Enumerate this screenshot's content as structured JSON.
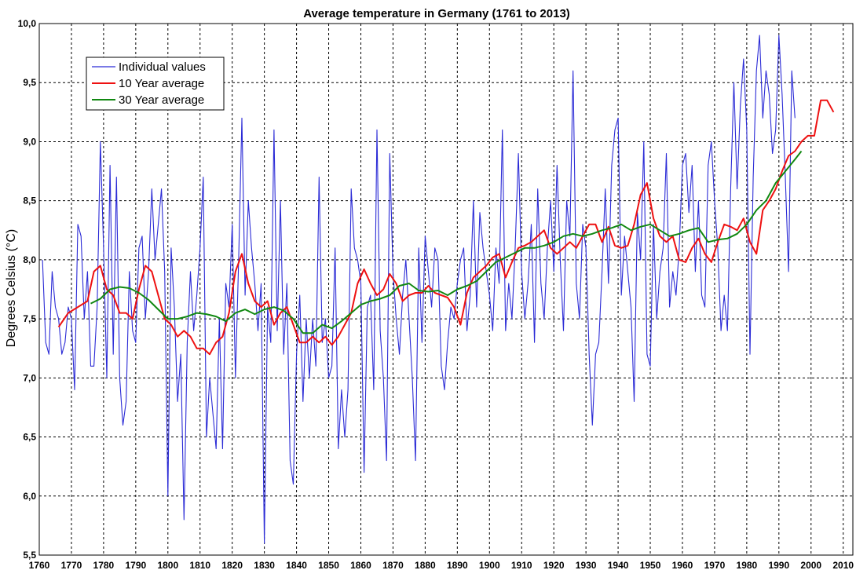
{
  "chart_data": {
    "type": "line",
    "title": "Average temperature in Germany (1761 to 2013)",
    "xlabel": "",
    "ylabel": "Degrees Celsius (°C)",
    "xlim": [
      1760,
      2013
    ],
    "ylim": [
      5.5,
      10.0
    ],
    "xticks": [
      1760,
      1770,
      1780,
      1790,
      1800,
      1810,
      1820,
      1830,
      1840,
      1850,
      1860,
      1870,
      1880,
      1890,
      1900,
      1910,
      1920,
      1930,
      1940,
      1950,
      1960,
      1970,
      1980,
      1990,
      2000,
      2010
    ],
    "yticks": [
      5.5,
      6.0,
      6.5,
      7.0,
      7.5,
      8.0,
      8.5,
      9.0,
      9.5,
      10.0
    ],
    "ytick_labels": [
      "5,5",
      "6,0",
      "6,5",
      "7,0",
      "7,5",
      "8,0",
      "8,5",
      "9,0",
      "9,5",
      "10,0"
    ],
    "grid": true,
    "legend_position": "top-left",
    "series": [
      {
        "name": "Individual values",
        "color": "#2b2bd6",
        "x_start": 1761,
        "values": [
          8.0,
          7.3,
          7.2,
          7.9,
          7.6,
          7.5,
          7.2,
          7.3,
          7.6,
          7.5,
          6.9,
          8.3,
          8.2,
          7.5,
          7.9,
          7.1,
          7.1,
          7.6,
          9.0,
          8.1,
          7.0,
          8.8,
          7.2,
          8.7,
          7.0,
          6.6,
          6.8,
          7.9,
          7.4,
          7.3,
          8.1,
          8.2,
          7.5,
          7.9,
          8.6,
          8.0,
          8.3,
          8.6,
          7.9,
          6.0,
          8.1,
          7.6,
          6.8,
          7.2,
          5.8,
          7.3,
          7.9,
          7.4,
          7.7,
          8.1,
          8.7,
          6.5,
          7.0,
          6.7,
          6.4,
          7.5,
          6.4,
          7.8,
          7.6,
          8.3,
          7.0,
          8.0,
          9.2,
          7.7,
          8.5,
          8.1,
          7.8,
          7.4,
          7.8,
          5.6,
          7.6,
          7.3,
          9.1,
          7.4,
          8.5,
          7.2,
          7.8,
          6.3,
          6.1,
          7.2,
          7.7,
          6.8,
          7.5,
          7.0,
          7.5,
          7.1,
          8.7,
          7.3,
          7.5,
          7.0,
          7.1,
          8.1,
          6.4,
          6.9,
          6.5,
          6.9,
          8.6,
          8.1,
          8.0,
          7.8,
          6.2,
          7.6,
          7.7,
          6.9,
          9.1,
          7.4,
          7.0,
          6.3,
          8.9,
          7.9,
          7.5,
          7.2,
          7.7,
          8.0,
          7.5,
          7.0,
          6.3,
          8.1,
          7.3,
          8.2,
          7.9,
          7.6,
          8.1,
          8.0,
          7.1,
          6.9,
          7.3,
          7.6,
          7.5,
          7.8,
          8.0,
          8.1,
          7.4,
          7.7,
          8.5,
          7.6,
          8.4,
          8.1,
          7.9,
          7.7,
          7.4,
          8.1,
          7.8,
          9.1,
          7.4,
          7.8,
          7.5,
          8.1,
          8.9,
          7.9,
          7.5,
          7.8,
          8.3,
          7.3,
          8.6,
          7.8,
          7.5,
          8.1,
          8.5,
          7.9,
          8.8,
          8.0,
          7.4,
          8.5,
          8.2,
          9.6,
          7.8,
          7.5,
          8.3,
          8.1,
          7.2,
          6.6,
          7.2,
          7.3,
          7.9,
          8.6,
          7.8,
          8.8,
          9.1,
          9.2,
          7.7,
          8.2,
          7.9,
          7.6,
          6.8,
          8.4,
          8.0,
          9.0,
          7.2,
          7.1,
          8.3,
          7.5,
          7.9,
          8.1,
          8.9,
          7.6,
          7.9,
          7.7,
          8.1,
          8.8,
          8.9,
          8.4,
          8.8,
          7.9,
          8.5,
          7.7,
          7.6,
          8.8,
          9.0,
          8.5,
          8.1,
          7.4,
          7.7,
          7.4,
          8.6,
          9.5,
          8.6,
          9.3,
          9.7,
          9.1,
          7.2,
          8.7,
          9.6,
          9.9,
          9.2,
          9.6,
          9.4,
          8.9,
          9.1,
          9.9,
          9.4,
          8.7,
          7.9,
          9.6,
          9.2
        ]
      },
      {
        "name": "10 Year average",
        "color": "#ee1111",
        "x": [
          1766,
          1769,
          1772,
          1775,
          1777,
          1779,
          1781,
          1783,
          1785,
          1787,
          1789,
          1791,
          1793,
          1795,
          1797,
          1799,
          1801,
          1803,
          1805,
          1807,
          1809,
          1811,
          1813,
          1815,
          1817,
          1819,
          1821,
          1823,
          1825,
          1827,
          1829,
          1831,
          1833,
          1835,
          1837,
          1839,
          1841,
          1843,
          1845,
          1847,
          1849,
          1851,
          1853,
          1855,
          1857,
          1859,
          1861,
          1863,
          1865,
          1867,
          1869,
          1871,
          1873,
          1875,
          1877,
          1879,
          1881,
          1883,
          1885,
          1887,
          1889,
          1891,
          1893,
          1895,
          1897,
          1899,
          1901,
          1903,
          1905,
          1907,
          1909,
          1911,
          1913,
          1915,
          1917,
          1919,
          1921,
          1923,
          1925,
          1927,
          1929,
          1931,
          1933,
          1935,
          1937,
          1939,
          1941,
          1943,
          1945,
          1947,
          1949,
          1951,
          1953,
          1955,
          1957,
          1959,
          1961,
          1963,
          1965,
          1967,
          1969,
          1971,
          1973,
          1975,
          1977,
          1979,
          1981,
          1983,
          1985,
          1987,
          1989,
          1991,
          1993,
          1995,
          1997,
          1999,
          2001,
          2003,
          2005,
          2007
        ],
        "values": [
          7.43,
          7.55,
          7.6,
          7.65,
          7.9,
          7.95,
          7.75,
          7.7,
          7.55,
          7.55,
          7.5,
          7.75,
          7.95,
          7.9,
          7.7,
          7.5,
          7.45,
          7.35,
          7.4,
          7.35,
          7.25,
          7.25,
          7.2,
          7.3,
          7.35,
          7.55,
          7.9,
          8.05,
          7.8,
          7.65,
          7.6,
          7.65,
          7.45,
          7.55,
          7.6,
          7.45,
          7.3,
          7.3,
          7.35,
          7.3,
          7.35,
          7.28,
          7.35,
          7.45,
          7.55,
          7.8,
          7.92,
          7.8,
          7.7,
          7.75,
          7.88,
          7.8,
          7.65,
          7.7,
          7.72,
          7.72,
          7.78,
          7.72,
          7.7,
          7.68,
          7.6,
          7.45,
          7.72,
          7.85,
          7.9,
          7.95,
          8.02,
          8.05,
          7.85,
          7.98,
          8.1,
          8.12,
          8.15,
          8.2,
          8.25,
          8.1,
          8.05,
          8.1,
          8.15,
          8.1,
          8.2,
          8.3,
          8.3,
          8.15,
          8.28,
          8.12,
          8.1,
          8.12,
          8.3,
          8.55,
          8.65,
          8.35,
          8.2,
          8.15,
          8.2,
          8.0,
          7.98,
          8.1,
          8.18,
          8.05,
          7.98,
          8.15,
          8.3,
          8.28,
          8.25,
          8.35,
          8.15,
          8.05,
          8.42,
          8.5,
          8.6,
          8.75,
          8.88,
          8.92,
          9.0,
          9.05,
          9.05,
          9.35,
          9.35,
          9.25
        ]
      },
      {
        "name": "30 Year average",
        "color": "#118811",
        "x": [
          1776,
          1779,
          1782,
          1785,
          1788,
          1791,
          1794,
          1797,
          1800,
          1803,
          1806,
          1809,
          1812,
          1815,
          1818,
          1821,
          1824,
          1827,
          1830,
          1833,
          1836,
          1839,
          1842,
          1845,
          1848,
          1851,
          1854,
          1857,
          1860,
          1863,
          1866,
          1869,
          1872,
          1875,
          1878,
          1881,
          1884,
          1887,
          1890,
          1893,
          1896,
          1899,
          1902,
          1905,
          1908,
          1911,
          1914,
          1917,
          1920,
          1923,
          1926,
          1929,
          1932,
          1935,
          1938,
          1941,
          1944,
          1947,
          1950,
          1953,
          1956,
          1959,
          1962,
          1965,
          1968,
          1971,
          1974,
          1977,
          1980,
          1983,
          1986,
          1989,
          1992,
          1995,
          1997
        ],
        "values": [
          7.63,
          7.67,
          7.75,
          7.77,
          7.76,
          7.72,
          7.66,
          7.58,
          7.5,
          7.5,
          7.52,
          7.55,
          7.54,
          7.52,
          7.48,
          7.55,
          7.58,
          7.54,
          7.58,
          7.6,
          7.57,
          7.5,
          7.38,
          7.38,
          7.45,
          7.42,
          7.48,
          7.55,
          7.62,
          7.65,
          7.67,
          7.7,
          7.78,
          7.8,
          7.74,
          7.73,
          7.74,
          7.7,
          7.75,
          7.78,
          7.82,
          7.9,
          7.98,
          8.02,
          8.06,
          8.1,
          8.1,
          8.12,
          8.15,
          8.2,
          8.22,
          8.2,
          8.22,
          8.25,
          8.27,
          8.3,
          8.25,
          8.28,
          8.3,
          8.25,
          8.2,
          8.22,
          8.25,
          8.27,
          8.15,
          8.17,
          8.18,
          8.22,
          8.3,
          8.42,
          8.5,
          8.65,
          8.75,
          8.85,
          8.92
        ]
      }
    ]
  }
}
